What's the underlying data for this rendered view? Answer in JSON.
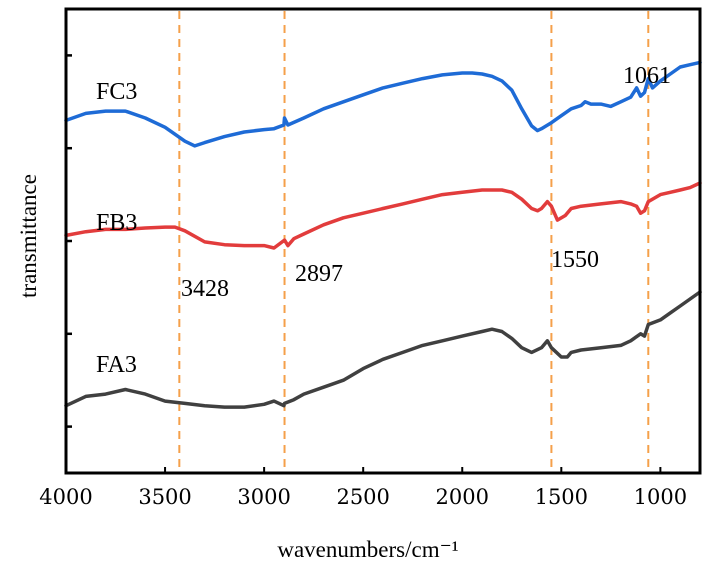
{
  "chart_data": {
    "type": "line",
    "title": "",
    "xlabel": "wavenumbers/cm⁻¹",
    "ylabel": "transmittance",
    "xlim": [
      4000,
      800
    ],
    "x_reversed": true,
    "ylim": [
      0,
      1
    ],
    "y_tick_labels_shown": false,
    "x_ticks": [
      {
        "value": 4000,
        "label": "4000"
      },
      {
        "value": 3500,
        "label": "3500"
      },
      {
        "value": 3000,
        "label": "3000"
      },
      {
        "value": 2500,
        "label": "2500"
      },
      {
        "value": 2000,
        "label": "2000"
      },
      {
        "value": 1500,
        "label": "1500"
      },
      {
        "value": 1000,
        "label": "1000"
      }
    ],
    "y_ticks": [
      0.1,
      0.3,
      0.5,
      0.7,
      0.9
    ],
    "grid": false,
    "legend": "none",
    "reference_lines": [
      {
        "x": 3428,
        "label": "3428",
        "color": "#F5A04A"
      },
      {
        "x": 2897,
        "label": "2897",
        "color": "#F5A04A"
      },
      {
        "x": 1550,
        "label": "1550",
        "color": "#F5A04A"
      },
      {
        "x": 1061,
        "label": "1061",
        "color": "#F5A04A"
      }
    ],
    "series": [
      {
        "name": "FC3",
        "color": "#1E6BD6",
        "points": [
          [
            4000,
            0.76
          ],
          [
            3900,
            0.775
          ],
          [
            3800,
            0.78
          ],
          [
            3700,
            0.78
          ],
          [
            3600,
            0.765
          ],
          [
            3500,
            0.745
          ],
          [
            3400,
            0.715
          ],
          [
            3350,
            0.705
          ],
          [
            3300,
            0.712
          ],
          [
            3200,
            0.725
          ],
          [
            3100,
            0.735
          ],
          [
            3000,
            0.74
          ],
          [
            2950,
            0.742
          ],
          [
            2900,
            0.75
          ],
          [
            2897,
            0.765
          ],
          [
            2880,
            0.75
          ],
          [
            2800,
            0.765
          ],
          [
            2700,
            0.785
          ],
          [
            2600,
            0.8
          ],
          [
            2500,
            0.815
          ],
          [
            2400,
            0.83
          ],
          [
            2300,
            0.84
          ],
          [
            2200,
            0.85
          ],
          [
            2100,
            0.858
          ],
          [
            2000,
            0.862
          ],
          [
            1950,
            0.862
          ],
          [
            1900,
            0.86
          ],
          [
            1850,
            0.855
          ],
          [
            1800,
            0.845
          ],
          [
            1750,
            0.825
          ],
          [
            1700,
            0.785
          ],
          [
            1650,
            0.748
          ],
          [
            1620,
            0.738
          ],
          [
            1600,
            0.742
          ],
          [
            1550,
            0.755
          ],
          [
            1500,
            0.77
          ],
          [
            1450,
            0.785
          ],
          [
            1400,
            0.792
          ],
          [
            1380,
            0.8
          ],
          [
            1350,
            0.795
          ],
          [
            1300,
            0.795
          ],
          [
            1250,
            0.79
          ],
          [
            1200,
            0.8
          ],
          [
            1150,
            0.81
          ],
          [
            1120,
            0.83
          ],
          [
            1100,
            0.812
          ],
          [
            1080,
            0.82
          ],
          [
            1061,
            0.85
          ],
          [
            1040,
            0.83
          ],
          [
            1000,
            0.845
          ],
          [
            950,
            0.86
          ],
          [
            900,
            0.875
          ],
          [
            850,
            0.88
          ],
          [
            800,
            0.885
          ]
        ]
      },
      {
        "name": "FB3",
        "color": "#E23C3C",
        "points": [
          [
            4000,
            0.512
          ],
          [
            3900,
            0.52
          ],
          [
            3800,
            0.525
          ],
          [
            3700,
            0.525
          ],
          [
            3600,
            0.528
          ],
          [
            3500,
            0.53
          ],
          [
            3450,
            0.53
          ],
          [
            3400,
            0.522
          ],
          [
            3300,
            0.498
          ],
          [
            3200,
            0.492
          ],
          [
            3100,
            0.49
          ],
          [
            3000,
            0.49
          ],
          [
            2950,
            0.485
          ],
          [
            2897,
            0.502
          ],
          [
            2880,
            0.49
          ],
          [
            2850,
            0.505
          ],
          [
            2800,
            0.515
          ],
          [
            2700,
            0.535
          ],
          [
            2600,
            0.55
          ],
          [
            2500,
            0.56
          ],
          [
            2400,
            0.57
          ],
          [
            2300,
            0.58
          ],
          [
            2200,
            0.59
          ],
          [
            2100,
            0.6
          ],
          [
            2000,
            0.605
          ],
          [
            1900,
            0.61
          ],
          [
            1850,
            0.61
          ],
          [
            1800,
            0.61
          ],
          [
            1750,
            0.605
          ],
          [
            1700,
            0.59
          ],
          [
            1650,
            0.57
          ],
          [
            1620,
            0.565
          ],
          [
            1600,
            0.57
          ],
          [
            1570,
            0.585
          ],
          [
            1550,
            0.575
          ],
          [
            1520,
            0.545
          ],
          [
            1480,
            0.555
          ],
          [
            1450,
            0.57
          ],
          [
            1400,
            0.575
          ],
          [
            1300,
            0.58
          ],
          [
            1200,
            0.585
          ],
          [
            1150,
            0.58
          ],
          [
            1120,
            0.575
          ],
          [
            1100,
            0.56
          ],
          [
            1080,
            0.565
          ],
          [
            1061,
            0.585
          ],
          [
            1000,
            0.6
          ],
          [
            950,
            0.605
          ],
          [
            900,
            0.61
          ],
          [
            850,
            0.615
          ],
          [
            800,
            0.625
          ]
        ]
      },
      {
        "name": "FA3",
        "color": "#404040",
        "points": [
          [
            4000,
            0.145
          ],
          [
            3950,
            0.155
          ],
          [
            3900,
            0.165
          ],
          [
            3800,
            0.17
          ],
          [
            3700,
            0.18
          ],
          [
            3600,
            0.17
          ],
          [
            3500,
            0.155
          ],
          [
            3400,
            0.15
          ],
          [
            3300,
            0.145
          ],
          [
            3200,
            0.142
          ],
          [
            3100,
            0.142
          ],
          [
            3000,
            0.148
          ],
          [
            2950,
            0.155
          ],
          [
            2900,
            0.145
          ],
          [
            2897,
            0.15
          ],
          [
            2850,
            0.158
          ],
          [
            2800,
            0.17
          ],
          [
            2700,
            0.185
          ],
          [
            2600,
            0.2
          ],
          [
            2500,
            0.225
          ],
          [
            2400,
            0.245
          ],
          [
            2300,
            0.26
          ],
          [
            2200,
            0.275
          ],
          [
            2100,
            0.285
          ],
          [
            2000,
            0.295
          ],
          [
            1900,
            0.305
          ],
          [
            1850,
            0.31
          ],
          [
            1800,
            0.305
          ],
          [
            1750,
            0.29
          ],
          [
            1700,
            0.27
          ],
          [
            1650,
            0.26
          ],
          [
            1600,
            0.27
          ],
          [
            1570,
            0.285
          ],
          [
            1550,
            0.27
          ],
          [
            1500,
            0.25
          ],
          [
            1470,
            0.25
          ],
          [
            1450,
            0.26
          ],
          [
            1400,
            0.265
          ],
          [
            1300,
            0.27
          ],
          [
            1200,
            0.275
          ],
          [
            1150,
            0.285
          ],
          [
            1100,
            0.3
          ],
          [
            1080,
            0.295
          ],
          [
            1061,
            0.32
          ],
          [
            1000,
            0.33
          ],
          [
            950,
            0.345
          ],
          [
            900,
            0.36
          ],
          [
            850,
            0.375
          ],
          [
            800,
            0.39
          ]
        ]
      }
    ],
    "series_labels": [
      {
        "text": "FC3",
        "series": "FC3"
      },
      {
        "text": "FB3",
        "series": "FB3"
      },
      {
        "text": "FA3",
        "series": "FA3"
      }
    ]
  }
}
